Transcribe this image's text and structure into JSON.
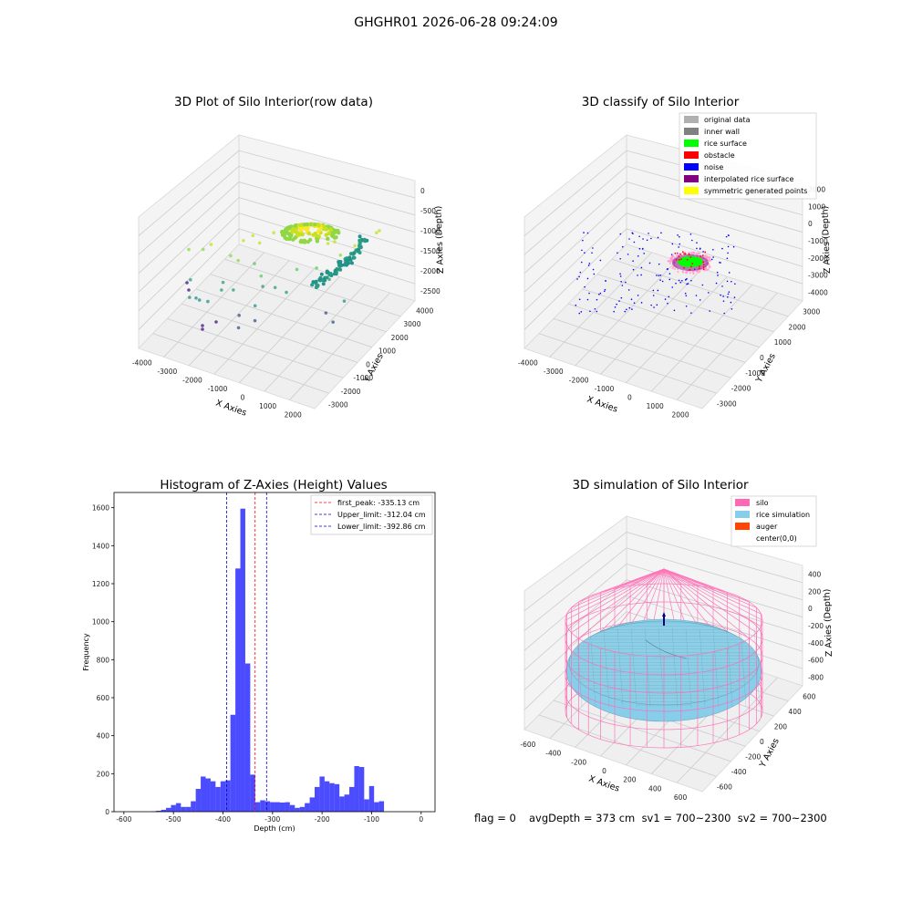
{
  "suptitle": "GHGHR01 2026-06-28 09:24:09",
  "chart_data": [
    {
      "type": "scatter3d",
      "title": "3D Plot of Silo Interior(row data)",
      "xlabel": "X Axies",
      "ylabel": "Y Axies",
      "zlabel": "Z Axies (Depth)",
      "xticks": [
        "-4000",
        "-3000",
        "-2000",
        "-1000",
        "0",
        "1000",
        "2000"
      ],
      "yticks": [
        "-3000",
        "-2000",
        "-1000",
        "0",
        "1000",
        "2000",
        "3000",
        "4000"
      ],
      "zticks": [
        "-2500",
        "-2000",
        "-1500",
        "-1000",
        "-500",
        "0"
      ]
    },
    {
      "type": "scatter3d",
      "title": "3D classify of Silo Interior",
      "xlabel": "X Axies",
      "ylabel": "Y Axies",
      "zlabel": "Z Axies (Depth)",
      "xticks": [
        "-4000",
        "-3000",
        "-2000",
        "-1000",
        "0",
        "1000",
        "2000"
      ],
      "yticks": [
        "-3000",
        "-2000",
        "-1000",
        "0",
        "1000",
        "2000",
        "3000"
      ],
      "zticks": [
        "-4000",
        "-3000",
        "-2000",
        "-1000",
        "0",
        "1000",
        "2000"
      ],
      "legend": [
        {
          "label": "original data",
          "color": "#b0b0b0"
        },
        {
          "label": "inner wall",
          "color": "#808080"
        },
        {
          "label": "rice surface",
          "color": "#00ff00"
        },
        {
          "label": "obstacle",
          "color": "#ff0000"
        },
        {
          "label": "noise",
          "color": "#0000ff"
        },
        {
          "label": "interpolated rice surface",
          "color": "#800080"
        },
        {
          "label": "symmetric generated points",
          "color": "#ffff00"
        }
      ]
    },
    {
      "type": "bar",
      "title": "Histogram of Z-Axies (Height) Values",
      "xlabel": "Depth (cm)",
      "ylabel": "Frequency",
      "xlim": [
        -620,
        28
      ],
      "ylim": [
        0,
        1680
      ],
      "xticks": [
        -600,
        -500,
        -400,
        -300,
        -200,
        -100,
        0
      ],
      "yticks": [
        0,
        200,
        400,
        600,
        800,
        1000,
        1200,
        1400,
        1600
      ],
      "bin_start": -545,
      "bin_width": 10,
      "values": [
        2,
        5,
        10,
        20,
        35,
        45,
        25,
        25,
        55,
        120,
        185,
        175,
        160,
        130,
        160,
        165,
        510,
        1280,
        1595,
        780,
        195,
        50,
        60,
        55,
        50,
        50,
        48,
        50,
        35,
        20,
        25,
        45,
        75,
        130,
        185,
        160,
        150,
        145,
        80,
        90,
        130,
        240,
        235,
        65,
        135,
        50,
        55
      ],
      "bar_color": "#0000ff",
      "vlines": [
        {
          "label": "first_peak: -335.13 cm",
          "x": -335.13,
          "color": "#ff0000"
        },
        {
          "label": "Upper_limit: -312.04 cm",
          "x": -312.04,
          "color": "#0000cc"
        },
        {
          "label": "Lower_limit: -392.86 cm",
          "x": -392.86,
          "color": "#0000cc"
        }
      ]
    },
    {
      "type": "surface3d",
      "title": "3D simulation of Silo Interior",
      "xlabel": "X Axies",
      "ylabel": "Y Axies",
      "zlabel": "Z Axies (Depth)",
      "xticks": [
        "-600",
        "-400",
        "-200",
        "0",
        "200",
        "400",
        "600"
      ],
      "yticks": [
        "-600",
        "-400",
        "-200",
        "0",
        "200",
        "400",
        "600"
      ],
      "zticks": [
        "-800",
        "-600",
        "-400",
        "-200",
        "0",
        "200",
        "400"
      ],
      "legend": [
        {
          "label": "silo",
          "color": "#ff69b4"
        },
        {
          "label": "rice simulation",
          "color": "#87ceeb"
        },
        {
          "label": "auger",
          "color": "#ff4500"
        },
        {
          "label": "center(0,0)",
          "color": "#ffffff"
        }
      ]
    }
  ],
  "footer": {
    "flag": "flag = 0",
    "summary": "avgDepth = 373 cm  sv1 = 700~2300  sv2 = 700~2300"
  }
}
